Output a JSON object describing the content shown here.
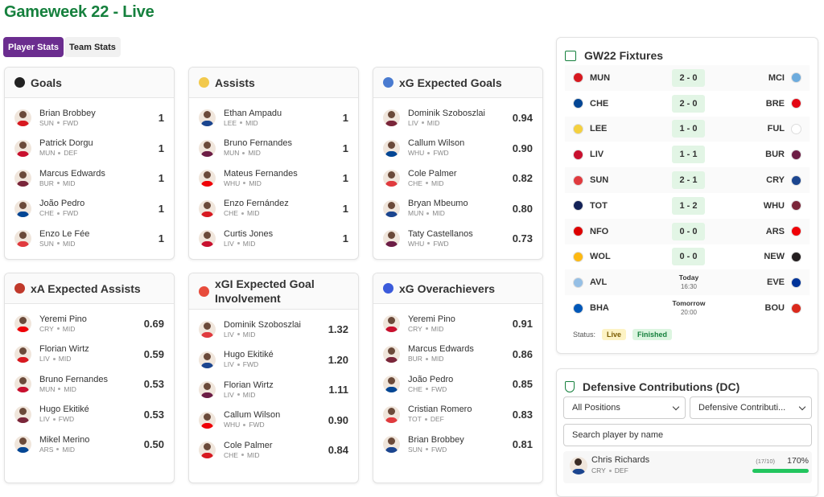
{
  "header": {
    "title": "Gameweek 22 - Live"
  },
  "tabs": [
    "Player Stats",
    "Team Stats"
  ],
  "cards": [
    {
      "title": "Goals",
      "rows": [
        {
          "name": "Brian Brobbey",
          "team": "SUN",
          "pos": "FWD",
          "value": "1"
        },
        {
          "name": "Patrick Dorgu",
          "team": "MUN",
          "pos": "DEF",
          "value": "1"
        },
        {
          "name": "Marcus Edwards",
          "team": "BUR",
          "pos": "MID",
          "value": "1"
        },
        {
          "name": "João Pedro",
          "team": "CHE",
          "pos": "FWD",
          "value": "1"
        },
        {
          "name": "Enzo Le Fée",
          "team": "SUN",
          "pos": "MID",
          "value": "1"
        }
      ]
    },
    {
      "title": "Assists",
      "rows": [
        {
          "name": "Ethan Ampadu",
          "team": "LEE",
          "pos": "MID",
          "value": "1"
        },
        {
          "name": "Bruno Fernandes",
          "team": "MUN",
          "pos": "MID",
          "value": "1"
        },
        {
          "name": "Mateus Fernandes",
          "team": "WHU",
          "pos": "MID",
          "value": "1"
        },
        {
          "name": "Enzo Fernández",
          "team": "CHE",
          "pos": "MID",
          "value": "1"
        },
        {
          "name": "Curtis Jones",
          "team": "LIV",
          "pos": "MID",
          "value": "1"
        }
      ]
    },
    {
      "title": "xG Expected Goals",
      "rows": [
        {
          "name": "Dominik Szoboszlai",
          "team": "LIV",
          "pos": "MID",
          "value": "0.94"
        },
        {
          "name": "Callum Wilson",
          "team": "WHU",
          "pos": "FWD",
          "value": "0.90"
        },
        {
          "name": "Cole Palmer",
          "team": "CHE",
          "pos": "MID",
          "value": "0.82"
        },
        {
          "name": "Bryan Mbeumo",
          "team": "MUN",
          "pos": "MID",
          "value": "0.80"
        },
        {
          "name": "Taty Castellanos",
          "team": "WHU",
          "pos": "FWD",
          "value": "0.73"
        }
      ]
    },
    {
      "title": "xA Expected Assists",
      "rows": [
        {
          "name": "Yeremi Pino",
          "team": "CRY",
          "pos": "MID",
          "value": "0.69"
        },
        {
          "name": "Florian Wirtz",
          "team": "LIV",
          "pos": "MID",
          "value": "0.59"
        },
        {
          "name": "Bruno Fernandes",
          "team": "MUN",
          "pos": "MID",
          "value": "0.53"
        },
        {
          "name": "Hugo Ekitiké",
          "team": "LIV",
          "pos": "FWD",
          "value": "0.53"
        },
        {
          "name": "Mikel Merino",
          "team": "ARS",
          "pos": "MID",
          "value": "0.50"
        }
      ]
    },
    {
      "title": "xGI Expected Goal Involvement",
      "rows": [
        {
          "name": "Dominik Szoboszlai",
          "team": "LIV",
          "pos": "MID",
          "value": "1.32"
        },
        {
          "name": "Hugo Ekitiké",
          "team": "LIV",
          "pos": "FWD",
          "value": "1.20"
        },
        {
          "name": "Florian Wirtz",
          "team": "LIV",
          "pos": "MID",
          "value": "1.11"
        },
        {
          "name": "Callum Wilson",
          "team": "WHU",
          "pos": "FWD",
          "value": "0.90"
        },
        {
          "name": "Cole Palmer",
          "team": "CHE",
          "pos": "MID",
          "value": "0.84"
        }
      ]
    },
    {
      "title": "xG Overachievers",
      "rows": [
        {
          "name": "Yeremi Pino",
          "team": "CRY",
          "pos": "MID",
          "value": "0.91"
        },
        {
          "name": "Marcus Edwards",
          "team": "BUR",
          "pos": "MID",
          "value": "0.86"
        },
        {
          "name": "João Pedro",
          "team": "CHE",
          "pos": "FWD",
          "value": "0.85"
        },
        {
          "name": "Cristian Romero",
          "team": "TOT",
          "pos": "DEF",
          "value": "0.83"
        },
        {
          "name": "Brian Brobbey",
          "team": "SUN",
          "pos": "FWD",
          "value": "0.81"
        }
      ]
    }
  ],
  "fixtures": {
    "title": "GW22 Fixtures",
    "matches": [
      {
        "home": "MUN",
        "score": "2 - 0",
        "away": "MCI"
      },
      {
        "home": "CHE",
        "score": "2 - 0",
        "away": "BRE"
      },
      {
        "home": "LEE",
        "score": "1 - 0",
        "away": "FUL"
      },
      {
        "home": "LIV",
        "score": "1 - 1",
        "away": "BUR"
      },
      {
        "home": "SUN",
        "score": "2 - 1",
        "away": "CRY"
      },
      {
        "home": "TOT",
        "score": "1 - 2",
        "away": "WHU"
      },
      {
        "home": "NFO",
        "score": "0 - 0",
        "away": "ARS"
      },
      {
        "home": "WOL",
        "score": "0 - 0",
        "away": "NEW"
      },
      {
        "home": "AVL",
        "day": "Today",
        "time": "16:30",
        "away": "EVE"
      },
      {
        "home": "BHA",
        "day": "Tomorrow",
        "time": "20:00",
        "away": "BOU"
      }
    ],
    "status_label": "Status:",
    "statuses": [
      "Live",
      "Finished"
    ]
  },
  "defensive": {
    "title": "Defensive Contributions (DC)",
    "filters": [
      "All Positions",
      "Defensive Contributi..."
    ],
    "search": "Search player by name",
    "players": [
      {
        "name": "Chris Richards",
        "team": "CRY",
        "pos": "DEF",
        "count": "(17/10)",
        "percent": "170%"
      }
    ]
  }
}
